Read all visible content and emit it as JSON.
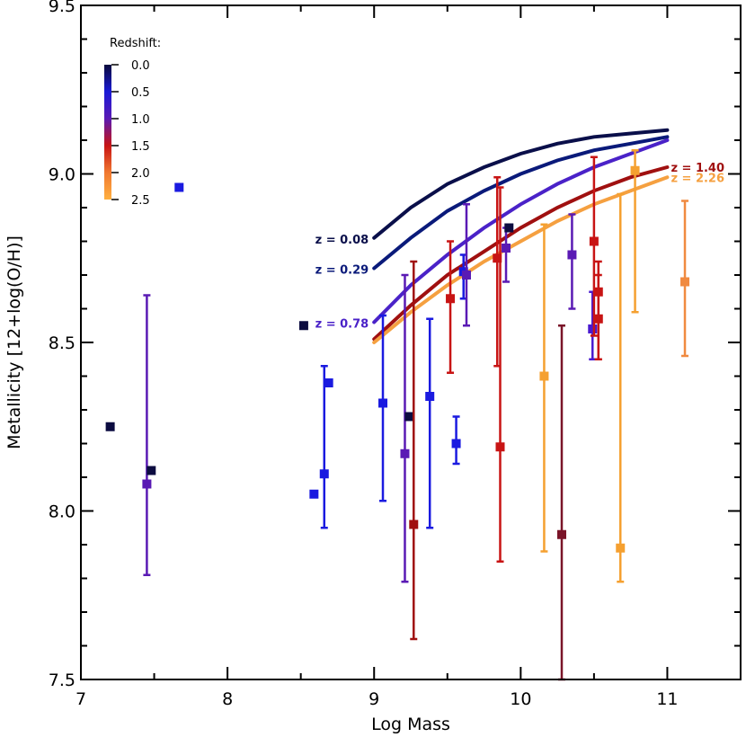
{
  "chart_data": {
    "type": "scatter",
    "xlabel": "Log Mass",
    "ylabel": "Metallicity [12+log(O/H)]",
    "xlim": [
      7,
      11.5
    ],
    "ylim": [
      7.5,
      9.5
    ],
    "x_ticks": [
      "7",
      "8",
      "9",
      "10",
      "11"
    ],
    "y_ticks": [
      "7.5",
      "8.0",
      "8.5",
      "9.0",
      "9.5"
    ],
    "grid": false,
    "colorbar": {
      "title": "Redshift:",
      "range": [
        0,
        2.5
      ],
      "tick_labels": [
        "0.0",
        "0.5",
        "1.0",
        "1.5",
        "2.0",
        "2.5"
      ],
      "placement": "top-left",
      "colors": [
        "#0a0a3c",
        "#1a1ad6",
        "#5a1ab4",
        "#c81414",
        "#f07830",
        "#ffb040"
      ]
    },
    "curves": [
      {
        "label": "z = 0.08",
        "color": "#0a0f4a",
        "x": [
          9.0,
          9.25,
          9.5,
          9.75,
          10.0,
          10.25,
          10.5,
          10.75,
          11.0
        ],
        "y": [
          8.81,
          8.9,
          8.97,
          9.02,
          9.06,
          9.09,
          9.11,
          9.12,
          9.13
        ]
      },
      {
        "label": "z = 0.29",
        "color": "#0a1a7a",
        "x": [
          9.0,
          9.25,
          9.5,
          9.75,
          10.0,
          10.25,
          10.5,
          10.75,
          11.0
        ],
        "y": [
          8.72,
          8.81,
          8.89,
          8.95,
          9.0,
          9.04,
          9.07,
          9.09,
          9.11
        ]
      },
      {
        "label": "z = 0.78",
        "color": "#4a22c8",
        "x": [
          9.0,
          9.25,
          9.5,
          9.75,
          10.0,
          10.25,
          10.5,
          10.75,
          11.0
        ],
        "y": [
          8.56,
          8.67,
          8.76,
          8.84,
          8.91,
          8.97,
          9.02,
          9.06,
          9.1
        ]
      },
      {
        "label": "z = 1.40",
        "color": "#a01010",
        "x": [
          9.0,
          9.25,
          9.5,
          9.75,
          10.0,
          10.25,
          10.5,
          10.75,
          11.0
        ],
        "y": [
          8.51,
          8.61,
          8.7,
          8.77,
          8.84,
          8.9,
          8.95,
          8.99,
          9.02
        ]
      },
      {
        "label": "z = 2.26",
        "color": "#f5a040",
        "x": [
          9.0,
          9.25,
          9.5,
          9.75,
          10.0,
          10.25,
          10.5,
          10.75,
          11.0
        ],
        "y": [
          8.5,
          8.59,
          8.67,
          8.74,
          8.8,
          8.86,
          8.91,
          8.95,
          8.99
        ]
      }
    ],
    "points": [
      {
        "x": 7.2,
        "y": 8.25,
        "color": "#0c0c40"
      },
      {
        "x": 7.45,
        "y": 8.08,
        "yerr": [
          7.81,
          8.64
        ],
        "color": "#5a1ab4"
      },
      {
        "x": 7.48,
        "y": 8.12,
        "color": "#0c0c40"
      },
      {
        "x": 7.67,
        "y": 8.96,
        "color": "#1a1ae0"
      },
      {
        "x": 8.52,
        "y": 8.55,
        "color": "#0c0c40"
      },
      {
        "x": 8.59,
        "y": 8.05,
        "color": "#1a1ae0"
      },
      {
        "x": 8.66,
        "y": 8.11,
        "yerr": [
          7.95,
          8.43
        ],
        "color": "#1a1ae0"
      },
      {
        "x": 8.69,
        "y": 8.38,
        "color": "#1a1ae0"
      },
      {
        "x": 9.06,
        "y": 8.32,
        "yerr": [
          8.03,
          8.58
        ],
        "color": "#1a1ae0"
      },
      {
        "x": 9.21,
        "y": 8.17,
        "yerr": [
          7.79,
          8.7
        ],
        "color": "#5a1ab4"
      },
      {
        "x": 9.24,
        "y": 8.28,
        "color": "#0c0c40"
      },
      {
        "x": 9.27,
        "y": 7.96,
        "yerr": [
          7.62,
          8.74
        ],
        "color": "#a01010"
      },
      {
        "x": 9.38,
        "y": 8.34,
        "yerr": [
          7.95,
          8.57
        ],
        "color": "#1a1ae0"
      },
      {
        "x": 9.52,
        "y": 8.63,
        "yerr": [
          8.41,
          8.8
        ],
        "color": "#c81414"
      },
      {
        "x": 9.56,
        "y": 8.2,
        "yerr": [
          8.14,
          8.28
        ],
        "color": "#1a1ae0"
      },
      {
        "x": 9.61,
        "y": 8.71,
        "yerr": [
          8.63,
          8.76
        ],
        "color": "#1a1ae0"
      },
      {
        "x": 9.63,
        "y": 8.7,
        "yerr": [
          8.55,
          8.91
        ],
        "color": "#5a1ab4"
      },
      {
        "x": 9.84,
        "y": 8.75,
        "yerr": [
          8.43,
          8.99
        ],
        "color": "#c81414"
      },
      {
        "x": 9.86,
        "y": 8.19,
        "yerr": [
          7.85,
          8.96
        ],
        "color": "#c81414"
      },
      {
        "x": 9.9,
        "y": 8.78,
        "yerr": [
          8.68,
          8.84
        ],
        "color": "#5a1ab4"
      },
      {
        "x": 9.92,
        "y": 8.84,
        "color": "#0c0c40"
      },
      {
        "x": 10.16,
        "y": 8.4,
        "yerr": [
          7.88,
          8.85
        ],
        "color": "#f5a030"
      },
      {
        "x": 10.28,
        "y": 7.93,
        "yerr": [
          7.5,
          8.55
        ],
        "color": "#7a1428"
      },
      {
        "x": 10.35,
        "y": 8.76,
        "yerr": [
          8.6,
          8.88
        ],
        "color": "#5a1ab4"
      },
      {
        "x": 10.49,
        "y": 8.54,
        "yerr": [
          8.45,
          8.65
        ],
        "color": "#4a1ad0"
      },
      {
        "x": 10.5,
        "y": 8.8,
        "yerr": [
          8.52,
          9.05
        ],
        "color": "#c81414"
      },
      {
        "x": 10.53,
        "y": 8.57,
        "yerr": [
          8.45,
          8.7
        ],
        "color": "#c81414"
      },
      {
        "x": 10.53,
        "y": 8.65,
        "yerr": [
          8.45,
          8.74
        ],
        "color": "#c81414"
      },
      {
        "x": 10.68,
        "y": 7.89,
        "yerr": [
          7.79,
          8.94
        ],
        "color": "#f5a030"
      },
      {
        "x": 10.78,
        "y": 9.01,
        "yerr": [
          8.59,
          9.07
        ],
        "color": "#f5a030"
      },
      {
        "x": 11.12,
        "y": 8.68,
        "yerr": [
          8.46,
          8.92
        ],
        "color": "#f08a40"
      }
    ]
  }
}
